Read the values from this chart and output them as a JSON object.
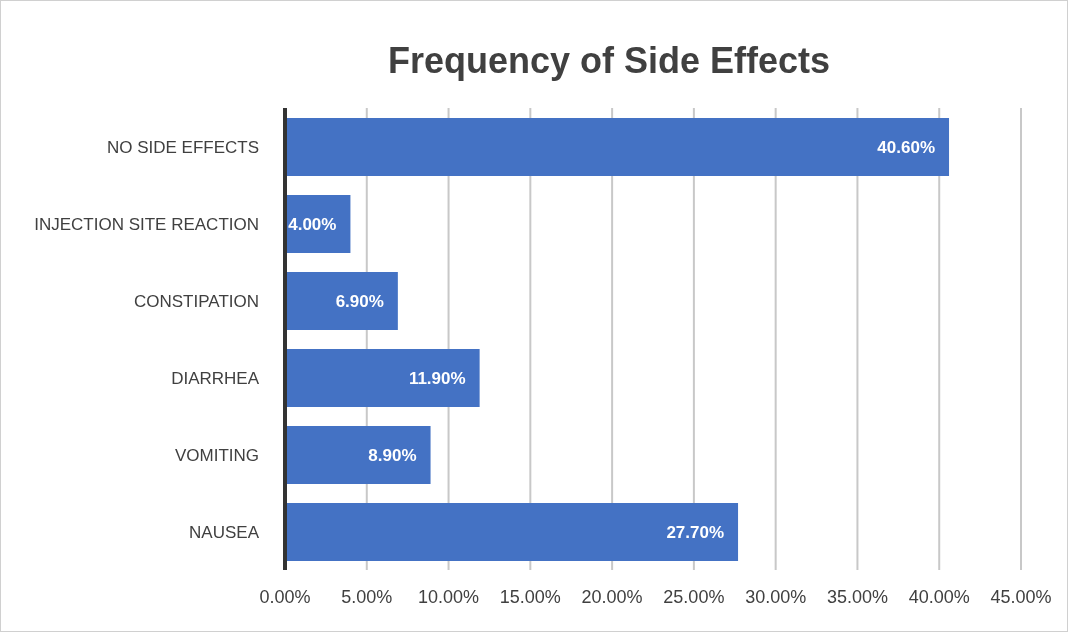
{
  "chart_data": {
    "type": "bar",
    "orientation": "horizontal",
    "title": "Frequency of Side Effects",
    "categories": [
      "NO SIDE EFFECTS",
      "INJECTION SITE REACTION",
      "CONSTIPATION",
      "DIARRHEA",
      "VOMITING",
      "NAUSEA"
    ],
    "values": [
      40.6,
      4.0,
      6.9,
      11.9,
      8.9,
      27.7
    ],
    "value_labels": [
      "40.60%",
      "4.00%",
      "6.90%",
      "11.90%",
      "8.90%",
      "27.70%"
    ],
    "color": "#4472c4",
    "xlim": [
      0,
      45
    ],
    "xticks": [
      {
        "value": 0,
        "label": "0.00%"
      },
      {
        "value": 5,
        "label": "5.00%"
      },
      {
        "value": 10,
        "label": "10.00%"
      },
      {
        "value": 15,
        "label": "15.00%"
      },
      {
        "value": 20,
        "label": "20.00%"
      },
      {
        "value": 25,
        "label": "25.00%"
      },
      {
        "value": 30,
        "label": "30.00%"
      },
      {
        "value": 35,
        "label": "35.00%"
      },
      {
        "value": 40,
        "label": "40.00%"
      },
      {
        "value": 45,
        "label": "45.00%"
      }
    ],
    "grid": "x",
    "legend": false
  }
}
